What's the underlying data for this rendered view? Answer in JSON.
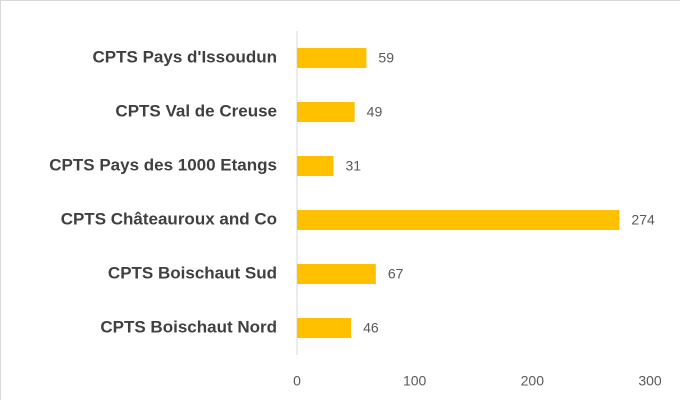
{
  "chart_data": {
    "type": "bar",
    "orientation": "horizontal",
    "categories": [
      "CPTS Pays d'Issoudun",
      "CPTS Val de Creuse",
      "CPTS Pays des 1000 Etangs",
      "CPTS Châteauroux and Co",
      "CPTS Boischaut Sud",
      "CPTS Boischaut Nord"
    ],
    "values": [
      59,
      49,
      31,
      274,
      67,
      46
    ],
    "color": "#ffc000",
    "xlim": [
      0,
      300
    ],
    "xticks": [
      0,
      100,
      200,
      300
    ],
    "grid": false
  }
}
